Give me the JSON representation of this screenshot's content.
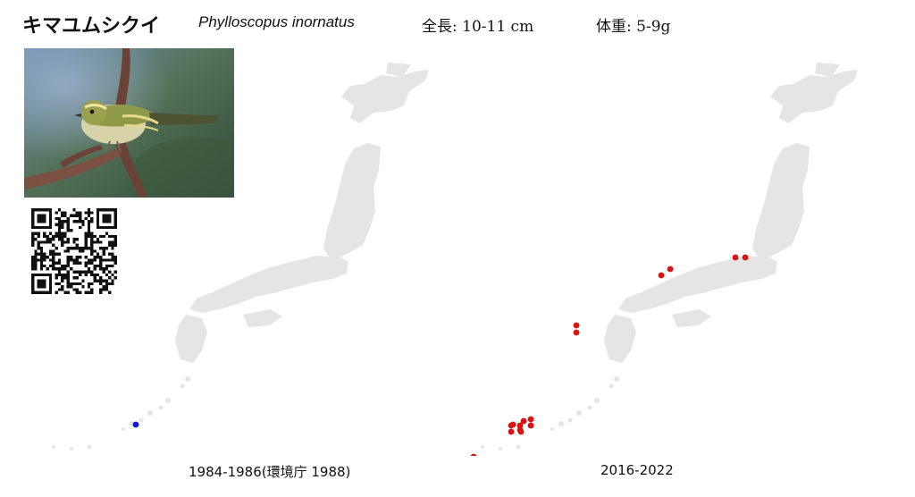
{
  "header": {
    "japanese_name": "キマユムシクイ",
    "scientific_name": "Phylloscopus inornatus",
    "length": "全長: 10-11 cm",
    "weight": "体重: 5-9g"
  },
  "photo": {
    "subject": "yellow-browed-warbler-photo"
  },
  "qr": {
    "icon": "qr-code-icon"
  },
  "maps": [
    {
      "caption": "1984-1986(環境庁 1988)",
      "dot_color": "#1515e0",
      "records": 1
    },
    {
      "caption": "2016-2022",
      "dot_color": "#dd1111",
      "records": 18
    }
  ],
  "colors": {
    "land": "#e5e5e5",
    "record_old": "#1515e0",
    "record_new": "#dd1111"
  }
}
